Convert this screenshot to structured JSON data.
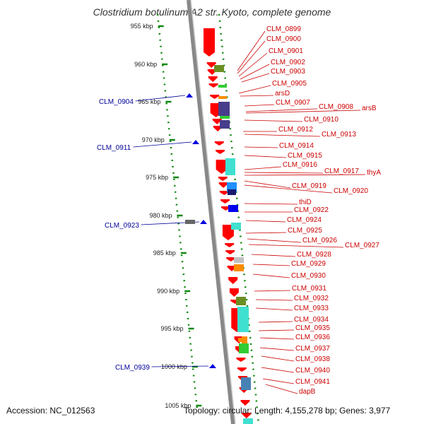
{
  "title": "Clostridium botulinum A2 str. Kyoto, complete genome",
  "accession": "Accession: NC_012563",
  "topology": "Topology: circular; Length: 4,155,278 bp; Genes: 3,977",
  "ruler_labels": [
    "955 kbp",
    "960 kbp",
    "965 kbp",
    "970 kbp",
    "975 kbp",
    "980 kbp",
    "985 kbp",
    "990 kbp",
    "995 kbp",
    "1000 kbp",
    "1005 kbp"
  ],
  "minus_strand_labels": [
    "CLM_0904",
    "CLM_0911",
    "CLM_0923",
    "CLM_0939"
  ],
  "plus_strand_labels": [
    "CLM_0899",
    "CLM_0900",
    "CLM_0901",
    "CLM_0902",
    "CLM_0903",
    "CLM_0905",
    "arsD",
    "CLM_0907",
    "CLM_0908",
    "arsB",
    "CLM_0910",
    "CLM_0912",
    "CLM_0913",
    "CLM_0914",
    "CLM_0915",
    "CLM_0916",
    "CLM_0917",
    "thyA",
    "CLM_0919",
    "CLM_0920",
    "thiD",
    "CLM_0922",
    "CLM_0924",
    "CLM_0925",
    "CLM_0926",
    "CLM_0927",
    "CLM_0928",
    "CLM_0929",
    "CLM_0930",
    "CLM_0931",
    "CLM_0932",
    "CLM_0933",
    "CLM_0934",
    "CLM_0935",
    "CLM_0936",
    "CLM_0937",
    "CLM_0938",
    "CLM_0940",
    "CLM_0941",
    "dapB"
  ],
  "colors": {
    "gene_red": "#ff0000",
    "label_red": "#cc0000",
    "label_blue": "#000099",
    "minus_blue": "#0000dd",
    "ruler_green": "#118811",
    "backbone": "#888888"
  }
}
